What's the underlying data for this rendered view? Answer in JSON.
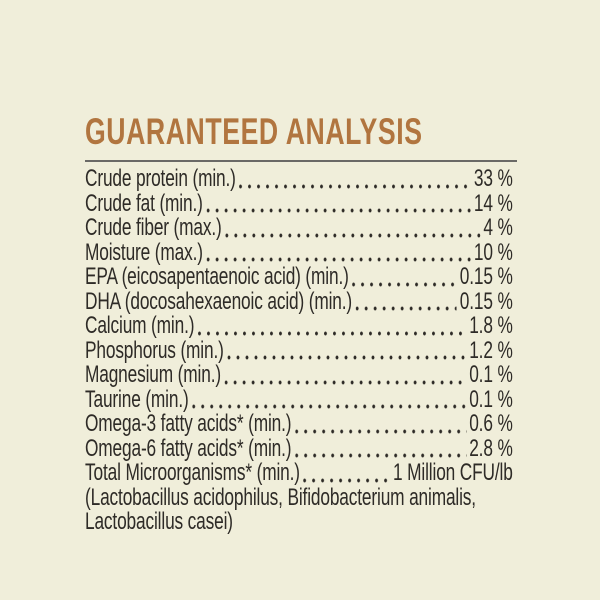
{
  "theme": {
    "background_color": "#f0eeda",
    "ink_color": "#2e2b27",
    "accent_color": "#b1753f",
    "rule_color": "#6a6966"
  },
  "header": {
    "title": "GUARANTEED ANALYSIS"
  },
  "analysis": {
    "rows": [
      {
        "label": "Crude protein (min.)",
        "value": "33 %"
      },
      {
        "label": "Crude fat (min.)",
        "value": "14 %"
      },
      {
        "label": "Crude fiber (max.)",
        "value": "4 %"
      },
      {
        "label": "Moisture (max.)",
        "value": "10 %"
      },
      {
        "label": "EPA (eicosapentaenoic acid) (min.)",
        "value": "0.15 %"
      },
      {
        "label": "DHA (docosahexaenoic acid) (min.)",
        "value": "0.15 %"
      },
      {
        "label": "Calcium (min.)",
        "value": "1.8 %"
      },
      {
        "label": "Phosphorus (min.)",
        "value": "1.2 %"
      },
      {
        "label": "Magnesium (min.)",
        "value": "0.1 %"
      },
      {
        "label": "Taurine (min.)",
        "value": "0.1 %"
      },
      {
        "label": "Omega-3 fatty acids* (min.)",
        "value": "0.6 %"
      },
      {
        "label": "Omega-6 fatty acids* (min.)",
        "value": "2.8 %"
      },
      {
        "label": "Total Microorganisms* (min.)",
        "value": "1 Million CFU/lb"
      }
    ],
    "footnote_lines": [
      "(Lactobacillus acidophilus, Bifidobacterium animalis,",
      "Lactobacillus casei)"
    ]
  }
}
